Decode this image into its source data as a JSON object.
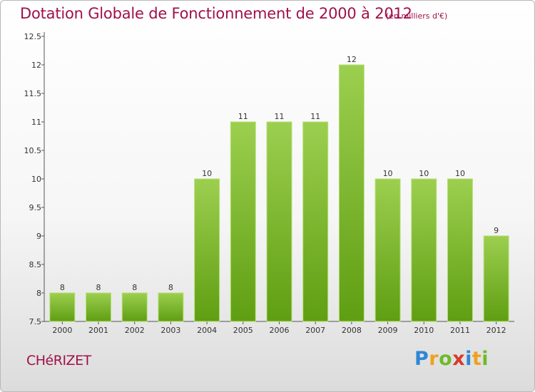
{
  "header": {
    "title": "Dotation Globale de Fonctionnement de 2000 à 2012",
    "unit": "(en milliers d'€)"
  },
  "footer": {
    "commune": "CHéRIZET",
    "logo": [
      "P",
      "r",
      "o",
      "x",
      "i",
      "t",
      "i"
    ]
  },
  "colors": {
    "title": "#a0104a",
    "bar_light": "#9ccf4f",
    "bar_dark": "#5f9e12",
    "logo": [
      "#2e86d6",
      "#f0a020",
      "#6dbb2a",
      "#d83a2a",
      "#2e86d6",
      "#f0a020",
      "#6dbb2a"
    ]
  },
  "chart_data": {
    "type": "bar",
    "categories": [
      "2000",
      "2001",
      "2002",
      "2003",
      "2004",
      "2005",
      "2006",
      "2007",
      "2008",
      "2009",
      "2010",
      "2011",
      "2012"
    ],
    "values": [
      8,
      8,
      8,
      8,
      10,
      11,
      11,
      11,
      12,
      10,
      10,
      10,
      9
    ],
    "value_labels": [
      "8",
      "8",
      "8",
      "8",
      "10",
      "11",
      "11",
      "11",
      "12",
      "10",
      "10",
      "10",
      "9"
    ],
    "ylim": [
      7.5,
      12.5
    ],
    "yticks": [
      "7.5",
      "8",
      "8.5",
      "9",
      "9.5",
      "10",
      "10.5",
      "11",
      "11.5",
      "12",
      "12.5"
    ],
    "grid": false
  }
}
